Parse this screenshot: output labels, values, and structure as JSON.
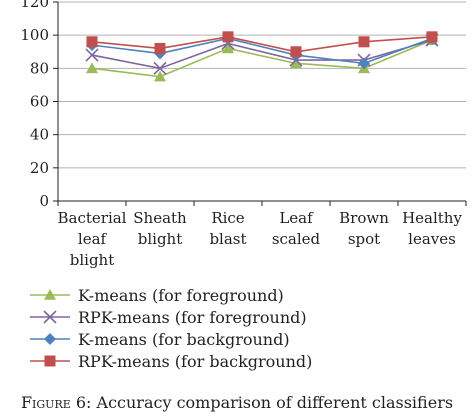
{
  "chart_data": {
    "type": "line",
    "categories": [
      [
        "Bacterial",
        "leaf",
        "blight"
      ],
      [
        "Sheath",
        "blight"
      ],
      [
        "Rice",
        "blast"
      ],
      [
        "Leaf",
        "scaled"
      ],
      [
        "Brown",
        "spot"
      ],
      [
        "Healthy",
        "leaves"
      ]
    ],
    "ylim": [
      0,
      120
    ],
    "yticks": [
      0,
      20,
      40,
      60,
      80,
      100,
      120
    ],
    "grid": true,
    "legend_position": "bottom",
    "series": [
      {
        "name": "K-means (for foreground)",
        "values": [
          80,
          75,
          92,
          83,
          80,
          97
        ],
        "color": "#9bbb59",
        "marker": "triangle"
      },
      {
        "name": "RPK-means (for foreground)",
        "values": [
          88,
          80,
          95,
          85,
          85,
          97
        ],
        "color": "#8064a2",
        "marker": "x"
      },
      {
        "name": "K-means (for background)",
        "values": [
          94,
          89,
          98,
          88,
          83,
          98
        ],
        "color": "#4f81bd",
        "marker": "diamond"
      },
      {
        "name": "RPK-means (for background)",
        "values": [
          96,
          92,
          99,
          90,
          96,
          99
        ],
        "color": "#c0504d",
        "marker": "square"
      }
    ]
  },
  "caption": {
    "figure_label": "Figure 6:",
    "text": "Accuracy comparison of different classifiers"
  }
}
